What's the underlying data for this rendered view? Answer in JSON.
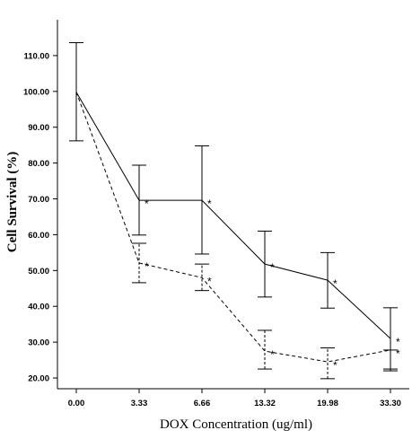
{
  "chart_data": {
    "type": "line",
    "xlabel": "DOX Concentration (ug/ml)",
    "ylabel": "Cell Survival (%)",
    "categories": [
      "0.00",
      "3.33",
      "6.66",
      "13.32",
      "19.98",
      "33.30"
    ],
    "ylim": [
      17,
      120
    ],
    "y_ticks": [
      "20.00",
      "30.00",
      "40.00",
      "50.00",
      "60.00",
      "70.00",
      "80.00",
      "90.00",
      "100.00",
      "110.00"
    ],
    "y_tick_values": [
      20,
      30,
      40,
      50,
      60,
      70,
      80,
      90,
      100,
      110
    ],
    "grid": false,
    "series": [
      {
        "style": "solid",
        "values": [
          99.8,
          69.6,
          69.6,
          51.8,
          47.3,
          31.0
        ],
        "err_low": [
          86.2,
          59.9,
          54.6,
          42.6,
          39.5,
          22.5
        ],
        "err_high": [
          113.6,
          79.4,
          84.8,
          61.0,
          55.0,
          39.6
        ],
        "significance": [
          "",
          "*",
          "*",
          "*",
          "*",
          "*"
        ]
      },
      {
        "style": "dashed",
        "values": [
          99.8,
          52.1,
          48.0,
          27.5,
          24.5,
          27.8
        ],
        "err_low": [
          99.8,
          46.6,
          44.4,
          22.5,
          19.8,
          22.0
        ],
        "err_high": [
          99.8,
          57.6,
          51.8,
          33.3,
          28.4,
          27.8
        ],
        "significance": [
          "",
          "*",
          "*",
          "*",
          "*",
          "*"
        ]
      }
    ]
  }
}
